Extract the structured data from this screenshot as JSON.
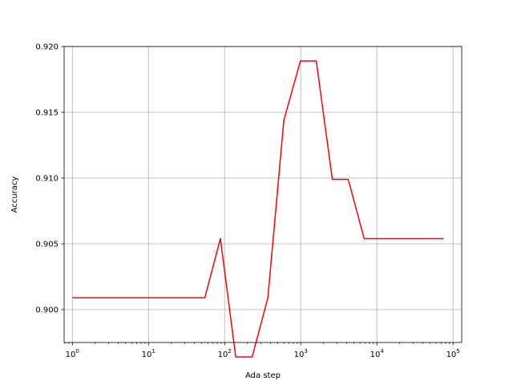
{
  "chart_data": {
    "type": "line",
    "title": "",
    "xlabel": "Ada step",
    "ylabel": "Accuracy",
    "x_scale": "log",
    "xlim": [
      0.78,
      130000
    ],
    "ylim": [
      0.8975,
      0.92
    ],
    "grid": true,
    "x_ticks": [
      {
        "value": 1,
        "base": "10",
        "exp": "0"
      },
      {
        "value": 10,
        "base": "10",
        "exp": "1"
      },
      {
        "value": 100,
        "base": "10",
        "exp": "2"
      },
      {
        "value": 1000,
        "base": "10",
        "exp": "3"
      },
      {
        "value": 10000,
        "base": "10",
        "exp": "4"
      },
      {
        "value": 100000,
        "base": "10",
        "exp": "5"
      }
    ],
    "y_ticks": [
      {
        "value": 0.9,
        "label": "0.900"
      },
      {
        "value": 0.905,
        "label": "0.905"
      },
      {
        "value": 0.91,
        "label": "0.910"
      },
      {
        "value": 0.915,
        "label": "0.915"
      },
      {
        "value": 0.92,
        "label": "0.920"
      }
    ],
    "series": [
      {
        "color": "#ff0000",
        "x": [
          1,
          55,
          88,
          140,
          230,
          370,
          600,
          990,
          1600,
          2600,
          4200,
          6800,
          75000
        ],
        "y": [
          0.9009,
          0.9009,
          0.9054,
          0.8964,
          0.8964,
          0.9009,
          0.9144,
          0.9189,
          0.9189,
          0.9099,
          0.9099,
          0.9054,
          0.9054
        ]
      }
    ]
  }
}
